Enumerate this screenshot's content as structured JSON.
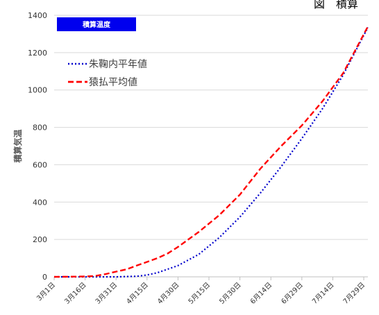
{
  "figure_label": "図　積算",
  "chart_data": {
    "type": "line",
    "title": "積算温度",
    "ylabel": "積算気温",
    "xlabel": "",
    "ylim": [
      0,
      1400
    ],
    "yticks": [
      0,
      200,
      400,
      600,
      800,
      1000,
      1200,
      1400
    ],
    "x_ticks": [
      "3月1日",
      "3月16日",
      "3月31日",
      "4月15日",
      "4月30日",
      "5月15日",
      "5月30日",
      "6月14日",
      "6月29日",
      "7月14日",
      "7月29日"
    ],
    "x_tick_day": [
      0,
      15,
      30,
      45,
      60,
      75,
      90,
      105,
      120,
      135,
      150
    ],
    "x_range_days": [
      0,
      152
    ],
    "grid": true,
    "legend_position": "top-left",
    "colors": {
      "series1": "#0000cc",
      "series2": "#ff0000",
      "title_bg": "#0000ee"
    },
    "series": [
      {
        "name": "朱鞠内平年値",
        "style": "dotted",
        "x_day": [
          0,
          20,
          30,
          40,
          45,
          50,
          60,
          70,
          80,
          90,
          100,
          110,
          120,
          130,
          140,
          152
        ],
        "values": [
          0,
          0,
          0,
          3,
          10,
          22,
          60,
          120,
          210,
          320,
          450,
          590,
          740,
          900,
          1080,
          1335
        ]
      },
      {
        "name": "猿払平均値",
        "style": "dashed",
        "x_day": [
          0,
          15,
          20,
          25,
          30,
          35,
          40,
          45,
          50,
          55,
          60,
          70,
          80,
          90,
          100,
          110,
          120,
          130,
          140,
          152
        ],
        "values": [
          0,
          2,
          5,
          15,
          28,
          40,
          60,
          80,
          100,
          125,
          160,
          240,
          330,
          440,
          580,
          700,
          810,
          940,
          1090,
          1340
        ]
      }
    ]
  }
}
